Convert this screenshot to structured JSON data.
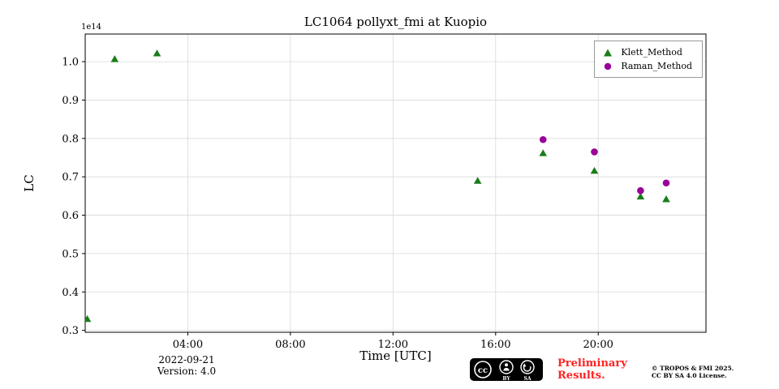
{
  "chart_data": {
    "type": "scatter",
    "title": "LC1064 pollyxt_fmi at Kuopio",
    "xlabel": "Time [UTC]",
    "ylabel": "LC",
    "offset_label": "1e14",
    "xlim": [
      0,
      24.2
    ],
    "ylim": [
      0.295,
      1.072
    ],
    "grid": true,
    "grid_color": "#d9d9d9",
    "legend_position": "upper right",
    "x_ticks": [
      {
        "h": 4,
        "label": "04:00"
      },
      {
        "h": 8,
        "label": "08:00"
      },
      {
        "h": 12,
        "label": "12:00"
      },
      {
        "h": 16,
        "label": "16:00"
      },
      {
        "h": 20,
        "label": "20:00"
      }
    ],
    "y_ticks": [
      {
        "v": 0.3,
        "label": "0.3"
      },
      {
        "v": 0.4,
        "label": "0.4"
      },
      {
        "v": 0.5,
        "label": "0.5"
      },
      {
        "v": 0.6,
        "label": "0.6"
      },
      {
        "v": 0.7,
        "label": "0.7"
      },
      {
        "v": 0.8,
        "label": "0.8"
      },
      {
        "v": 0.9,
        "label": "0.9"
      },
      {
        "v": 1.0,
        "label": "1.0"
      }
    ],
    "series": [
      {
        "name": "Klett_Method",
        "marker": "triangle",
        "color": "#1a7d1a",
        "points": [
          {
            "t": 0.08,
            "v": 0.33
          },
          {
            "t": 1.15,
            "v": 1.007
          },
          {
            "t": 2.8,
            "v": 1.022
          },
          {
            "t": 15.3,
            "v": 0.69
          },
          {
            "t": 17.85,
            "v": 0.762
          },
          {
            "t": 19.85,
            "v": 0.716
          },
          {
            "t": 21.65,
            "v": 0.649
          },
          {
            "t": 22.65,
            "v": 0.642
          }
        ]
      },
      {
        "name": "Raman_Method",
        "marker": "circle",
        "color": "#990099",
        "points": [
          {
            "t": 17.85,
            "v": 0.797
          },
          {
            "t": 19.85,
            "v": 0.765
          },
          {
            "t": 21.65,
            "v": 0.664
          },
          {
            "t": 22.65,
            "v": 0.684
          }
        ]
      }
    ]
  },
  "footer": {
    "date": "2022-09-21",
    "version": "Version: 4.0",
    "preliminary_line1": "Preliminary",
    "preliminary_line2": "Results.",
    "preliminary_color": "#ff2222",
    "license_line1": "© TROPOS & FMI 2025.",
    "license_line2": "CC BY SA 4.0 License.",
    "badge": {
      "cc": "cc",
      "by": "BY",
      "sa": "SA"
    }
  }
}
